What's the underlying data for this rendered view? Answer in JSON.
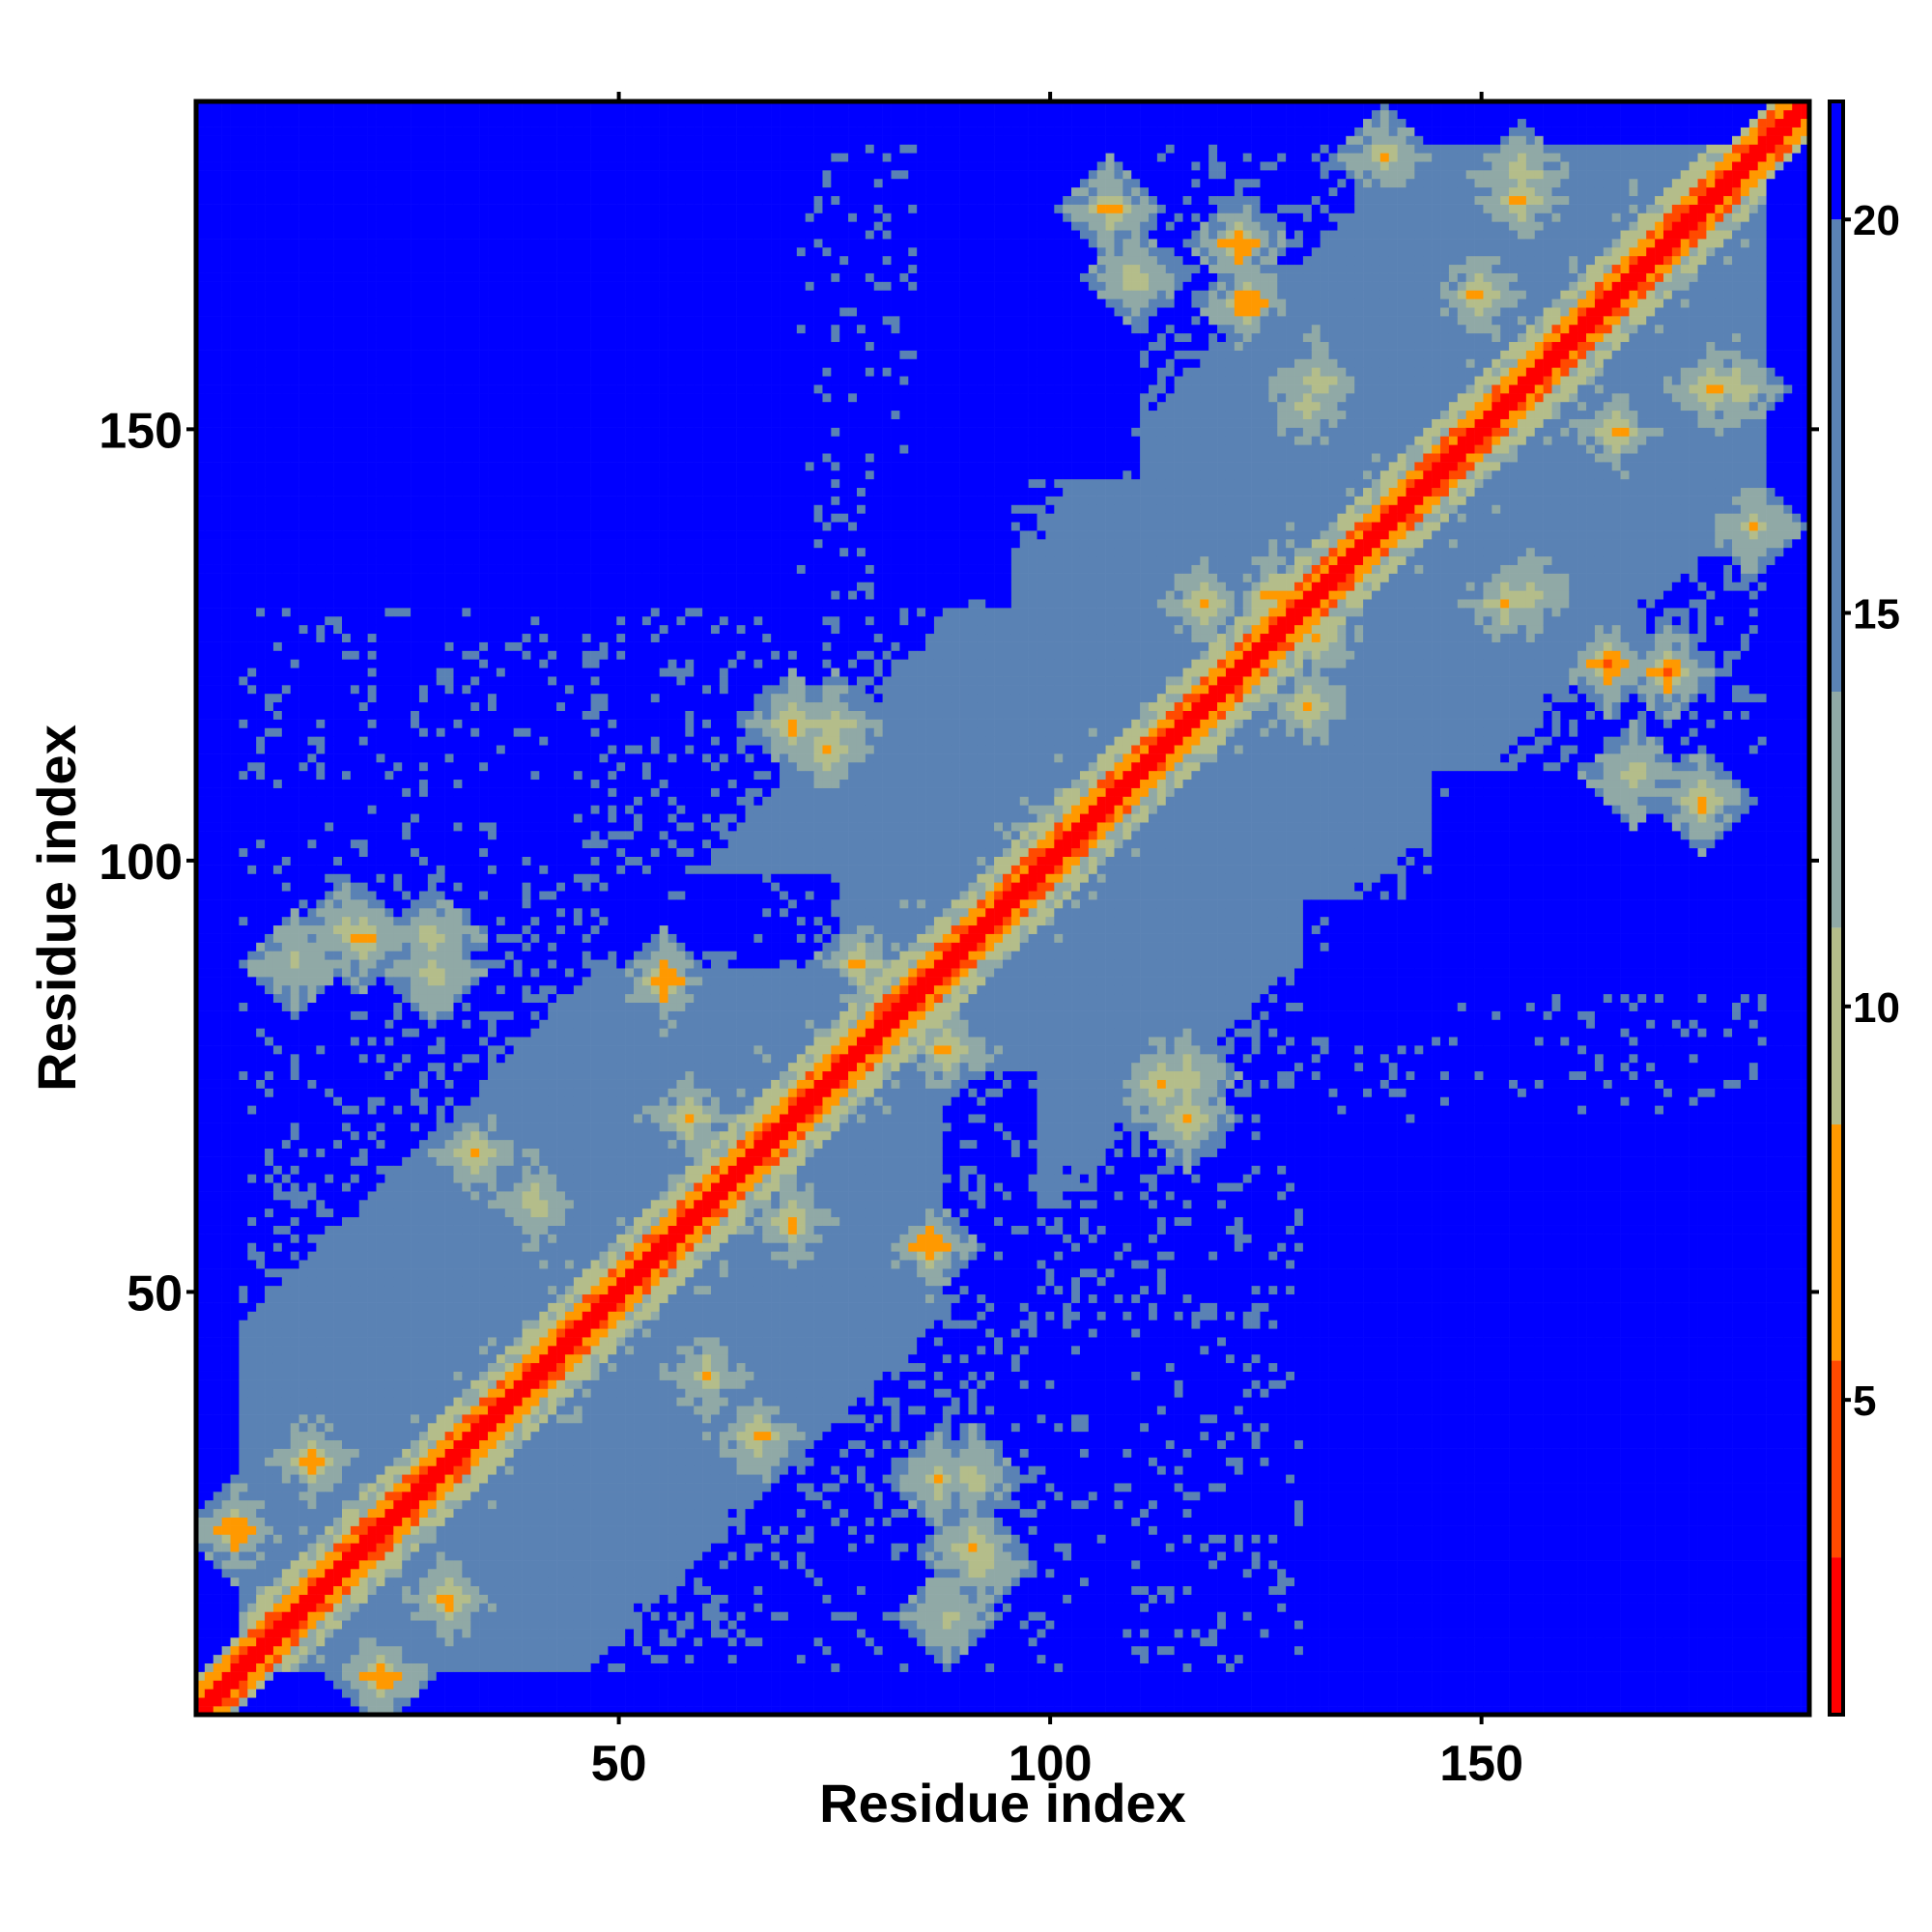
{
  "chart_data": {
    "type": "heatmap",
    "title": "",
    "xlabel": "Residue index",
    "ylabel": "Residue index",
    "n_residues": 188,
    "xlim": [
      1,
      188
    ],
    "ylim": [
      1,
      188
    ],
    "x_ticks": [
      50,
      100,
      150
    ],
    "y_ticks": [
      50,
      100,
      150
    ],
    "x_tick_labels": [
      "50",
      "100",
      "150"
    ],
    "y_tick_labels": [
      "50",
      "100",
      "150"
    ],
    "colorbar": {
      "range": [
        1,
        21.5
      ],
      "ticks": [
        5,
        10,
        15,
        20
      ],
      "tick_labels": [
        "5",
        "10",
        "15",
        "20"
      ],
      "placement": "right"
    },
    "color_scale": [
      {
        "max": 3,
        "color": "#ff0000"
      },
      {
        "max": 5.5,
        "color": "#ff4a00"
      },
      {
        "max": 8.5,
        "color": "#ff9900"
      },
      {
        "max": 11,
        "color": "#b4bd8a"
      },
      {
        "max": 14,
        "color": "#90a9a6"
      },
      {
        "max": 20,
        "color": "#5a82b4"
      },
      {
        "max": 99,
        "color": "#0000ff"
      }
    ],
    "values_description_note": "",
    "contact_features": [
      {
        "i": 5,
        "j": 22,
        "strength": 5
      },
      {
        "i": 14,
        "j": 30,
        "strength": 6
      },
      {
        "i": 12,
        "j": 88,
        "strength": 9
      },
      {
        "i": 20,
        "j": 91,
        "strength": 7
      },
      {
        "i": 28,
        "j": 87,
        "strength": 8
      },
      {
        "i": 33,
        "j": 66,
        "strength": 7
      },
      {
        "i": 40,
        "j": 60,
        "strength": 8
      },
      {
        "i": 55,
        "j": 86,
        "strength": 5
      },
      {
        "i": 58,
        "j": 70,
        "strength": 7
      },
      {
        "i": 70,
        "j": 116,
        "strength": 7
      },
      {
        "i": 75,
        "j": 116,
        "strength": 8
      },
      {
        "i": 78,
        "j": 88,
        "strength": 7
      },
      {
        "i": 86,
        "j": 55,
        "strength": 5
      },
      {
        "i": 88,
        "j": 78,
        "strength": 7
      },
      {
        "i": 91,
        "j": 28,
        "strength": 8
      },
      {
        "i": 92,
        "j": 18,
        "strength": 8
      },
      {
        "i": 113,
        "j": 74,
        "strength": 7
      },
      {
        "i": 118,
        "j": 130,
        "strength": 7
      },
      {
        "i": 122,
        "j": 172,
        "strength": 5
      },
      {
        "i": 126,
        "j": 131,
        "strength": 7
      },
      {
        "i": 130,
        "j": 153,
        "strength": 8
      },
      {
        "i": 150,
        "j": 166,
        "strength": 7
      },
      {
        "i": 156,
        "j": 131,
        "strength": 8
      },
      {
        "i": 165,
        "j": 123,
        "strength": 5
      },
      {
        "i": 168,
        "j": 110,
        "strength": 8
      },
      {
        "i": 172,
        "j": 122,
        "strength": 5
      },
      {
        "i": 180,
        "j": 155,
        "strength": 8
      },
      {
        "i": 107,
        "j": 176,
        "strength": 7
      },
      {
        "i": 110,
        "j": 168,
        "strength": 8
      },
      {
        "i": 139,
        "j": 182,
        "strength": 8
      },
      {
        "i": 155,
        "j": 177,
        "strength": 7
      }
    ],
    "far_regions": [
      {
        "i0": 5,
        "i1": 70,
        "j0": 130,
        "j1": 188
      },
      {
        "i0": 130,
        "i1": 188,
        "j0": 5,
        "j1": 70
      },
      {
        "i0": 50,
        "i1": 75,
        "j0": 88,
        "j1": 98
      },
      {
        "i0": 88,
        "i1": 98,
        "j0": 50,
        "j1": 75
      },
      {
        "i0": 145,
        "i1": 188,
        "j0": 85,
        "j1": 110
      },
      {
        "i0": 85,
        "i1": 110,
        "j0": 145,
        "j1": 188
      },
      {
        "i0": 80,
        "i1": 95,
        "j0": 130,
        "j1": 145
      },
      {
        "i0": 130,
        "i1": 145,
        "j0": 80,
        "j1": 95
      }
    ]
  }
}
